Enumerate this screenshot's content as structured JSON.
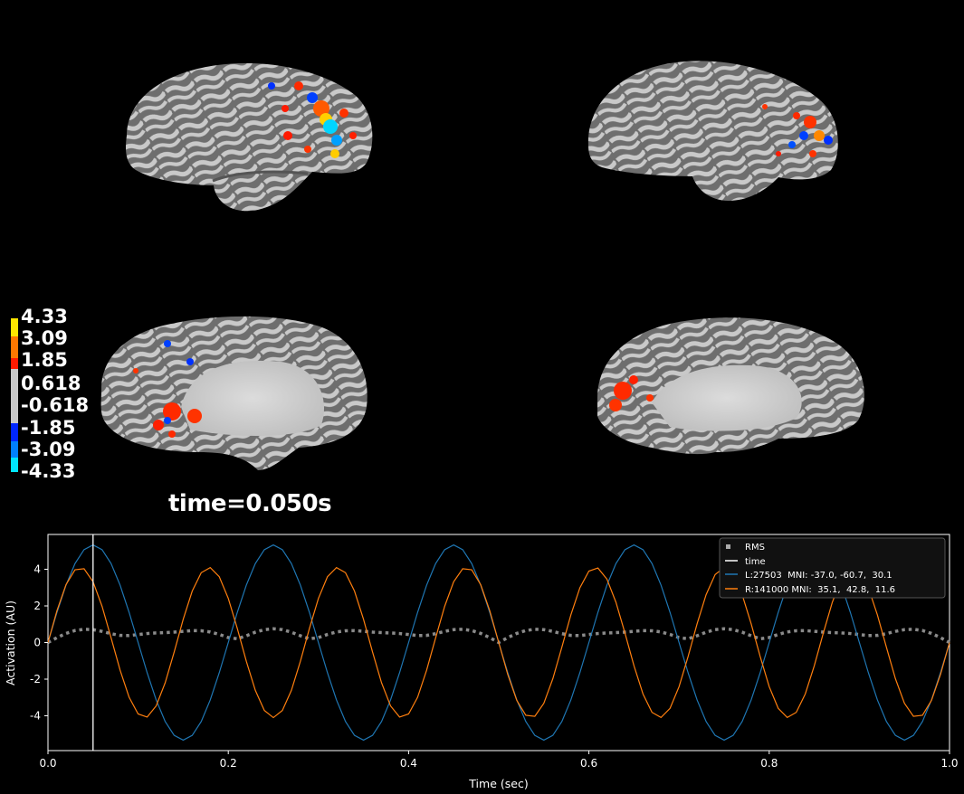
{
  "figure": {
    "time_label": "time=0.050s"
  },
  "colorbar": {
    "ticks": [
      "4.33",
      "3.09",
      "1.85",
      "0.618",
      "-0.618",
      "-1.85",
      "-3.09",
      "-4.33"
    ],
    "colors": [
      "#ffff00",
      "#ff8c00",
      "#ff1a00",
      "#c8c8c8",
      "#c8c8c8",
      "#0026ff",
      "#0073ff",
      "#00e5ff"
    ]
  },
  "views": [
    {
      "hemi": "lh",
      "view": "lateral"
    },
    {
      "hemi": "rh",
      "view": "lateral"
    },
    {
      "hemi": "lh",
      "view": "medial"
    },
    {
      "hemi": "rh",
      "view": "medial"
    }
  ],
  "chart_data": {
    "type": "line",
    "xlabel": "Time (sec)",
    "ylabel": "Activation (AU)",
    "xlim": [
      0,
      1.0
    ],
    "ylim": [
      -5.9,
      5.9
    ],
    "xticks": [
      "0.0",
      "0.2",
      "0.4",
      "0.6",
      "0.8",
      "1.0"
    ],
    "yticks": [
      "-4",
      "-2",
      "0",
      "2",
      "4"
    ],
    "grid": false,
    "legend_position": "top-right",
    "time_cursor": 0.05,
    "series": [
      {
        "name": "L:27503  MNI: -37.0, -60.7,  30.1",
        "color": "#1f77b4",
        "style": "solid",
        "model": "sine",
        "amplitude": 5.33,
        "frequency_hz": 5.0,
        "phase_rad": 0.0,
        "samples": 101
      },
      {
        "name": "R:141000 MNI:  35.1,  42.8,  11.6",
        "color": "#ff7f0e",
        "style": "solid",
        "model": "sine",
        "amplitude": 4.1,
        "frequency_hz": 7.0,
        "phase_rad": 0.0,
        "samples": 101
      },
      {
        "name": "RMS",
        "color": "#888888",
        "style": "dotted",
        "model": "rms_of_series",
        "samples": 101
      },
      {
        "name": "time",
        "color": "#ffffff",
        "style": "vline"
      }
    ],
    "legend_order": [
      "RMS",
      "time",
      "L:27503  MNI: -37.0, -60.7,  30.1",
      "R:141000 MNI:  35.1,  42.8,  11.6"
    ]
  }
}
